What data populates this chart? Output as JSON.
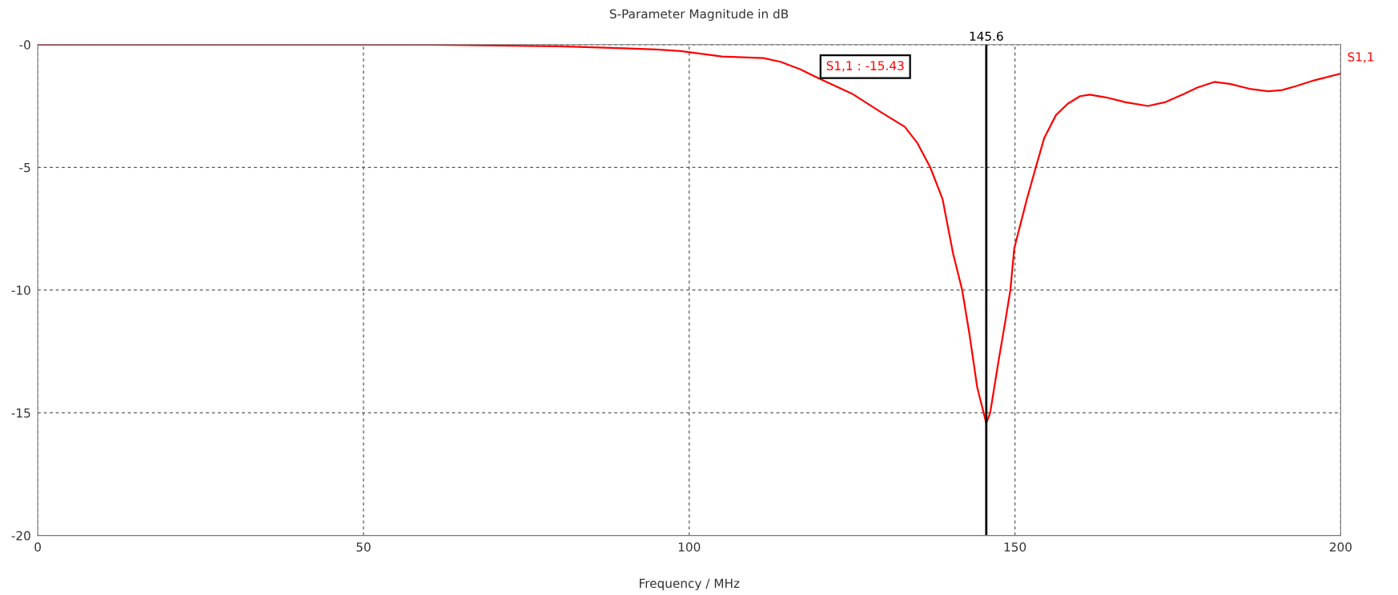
{
  "chart_data": {
    "type": "line",
    "title": "S-Parameter Magnitude in dB",
    "xlabel": "Frequency / MHz",
    "series": [
      {
        "name": "S1,1",
        "color": "#ff0000",
        "x": [
          0,
          20,
          40,
          60,
          80,
          90,
          95,
          98.7,
          105,
          111.4,
          114,
          117,
          119.7,
          125,
          129.6,
          133.1,
          135,
          137,
          138.9,
          139.4,
          140.5,
          141.9,
          143,
          144.2,
          145.6,
          146.2,
          147.5,
          148.5,
          149.3,
          149.9,
          151.8,
          153.2,
          154.5,
          156.3,
          158.1,
          160,
          161.5,
          164,
          167,
          170.4,
          173,
          176,
          178,
          180.6,
          183,
          186,
          188.9,
          191,
          193,
          196,
          200
        ],
        "values": [
          0,
          0,
          0,
          0,
          -0.07,
          -0.15,
          -0.2,
          -0.26,
          -0.48,
          -0.55,
          -0.7,
          -1.0,
          -1.35,
          -2.0,
          -2.78,
          -3.35,
          -4.0,
          -5.0,
          -6.3,
          -7.0,
          -8.5,
          -10.0,
          -11.77,
          -13.95,
          -15.43,
          -15.0,
          -12.86,
          -11.3,
          -10.0,
          -8.29,
          -6.33,
          -5.0,
          -3.8,
          -2.87,
          -2.41,
          -2.1,
          -2.04,
          -2.15,
          -2.35,
          -2.5,
          -2.35,
          -2.0,
          -1.75,
          -1.52,
          -1.6,
          -1.8,
          -1.9,
          -1.85,
          -1.7,
          -1.45,
          -1.18
        ]
      }
    ],
    "xlim": [
      0,
      200
    ],
    "xticks": [
      0,
      50,
      100,
      150,
      200
    ],
    "ylim": [
      -20,
      0
    ],
    "yticks": [
      {
        "value": 0,
        "label": "-0"
      },
      -5,
      -10,
      -15,
      -20
    ],
    "ref_lines": [
      {
        "axis": "x",
        "value": 145.6,
        "label": "145.6",
        "color": "#000000"
      }
    ],
    "annotations": [
      "S1,1 : -15.43"
    ],
    "grid": true,
    "line_style": "solid",
    "marker": "none"
  }
}
